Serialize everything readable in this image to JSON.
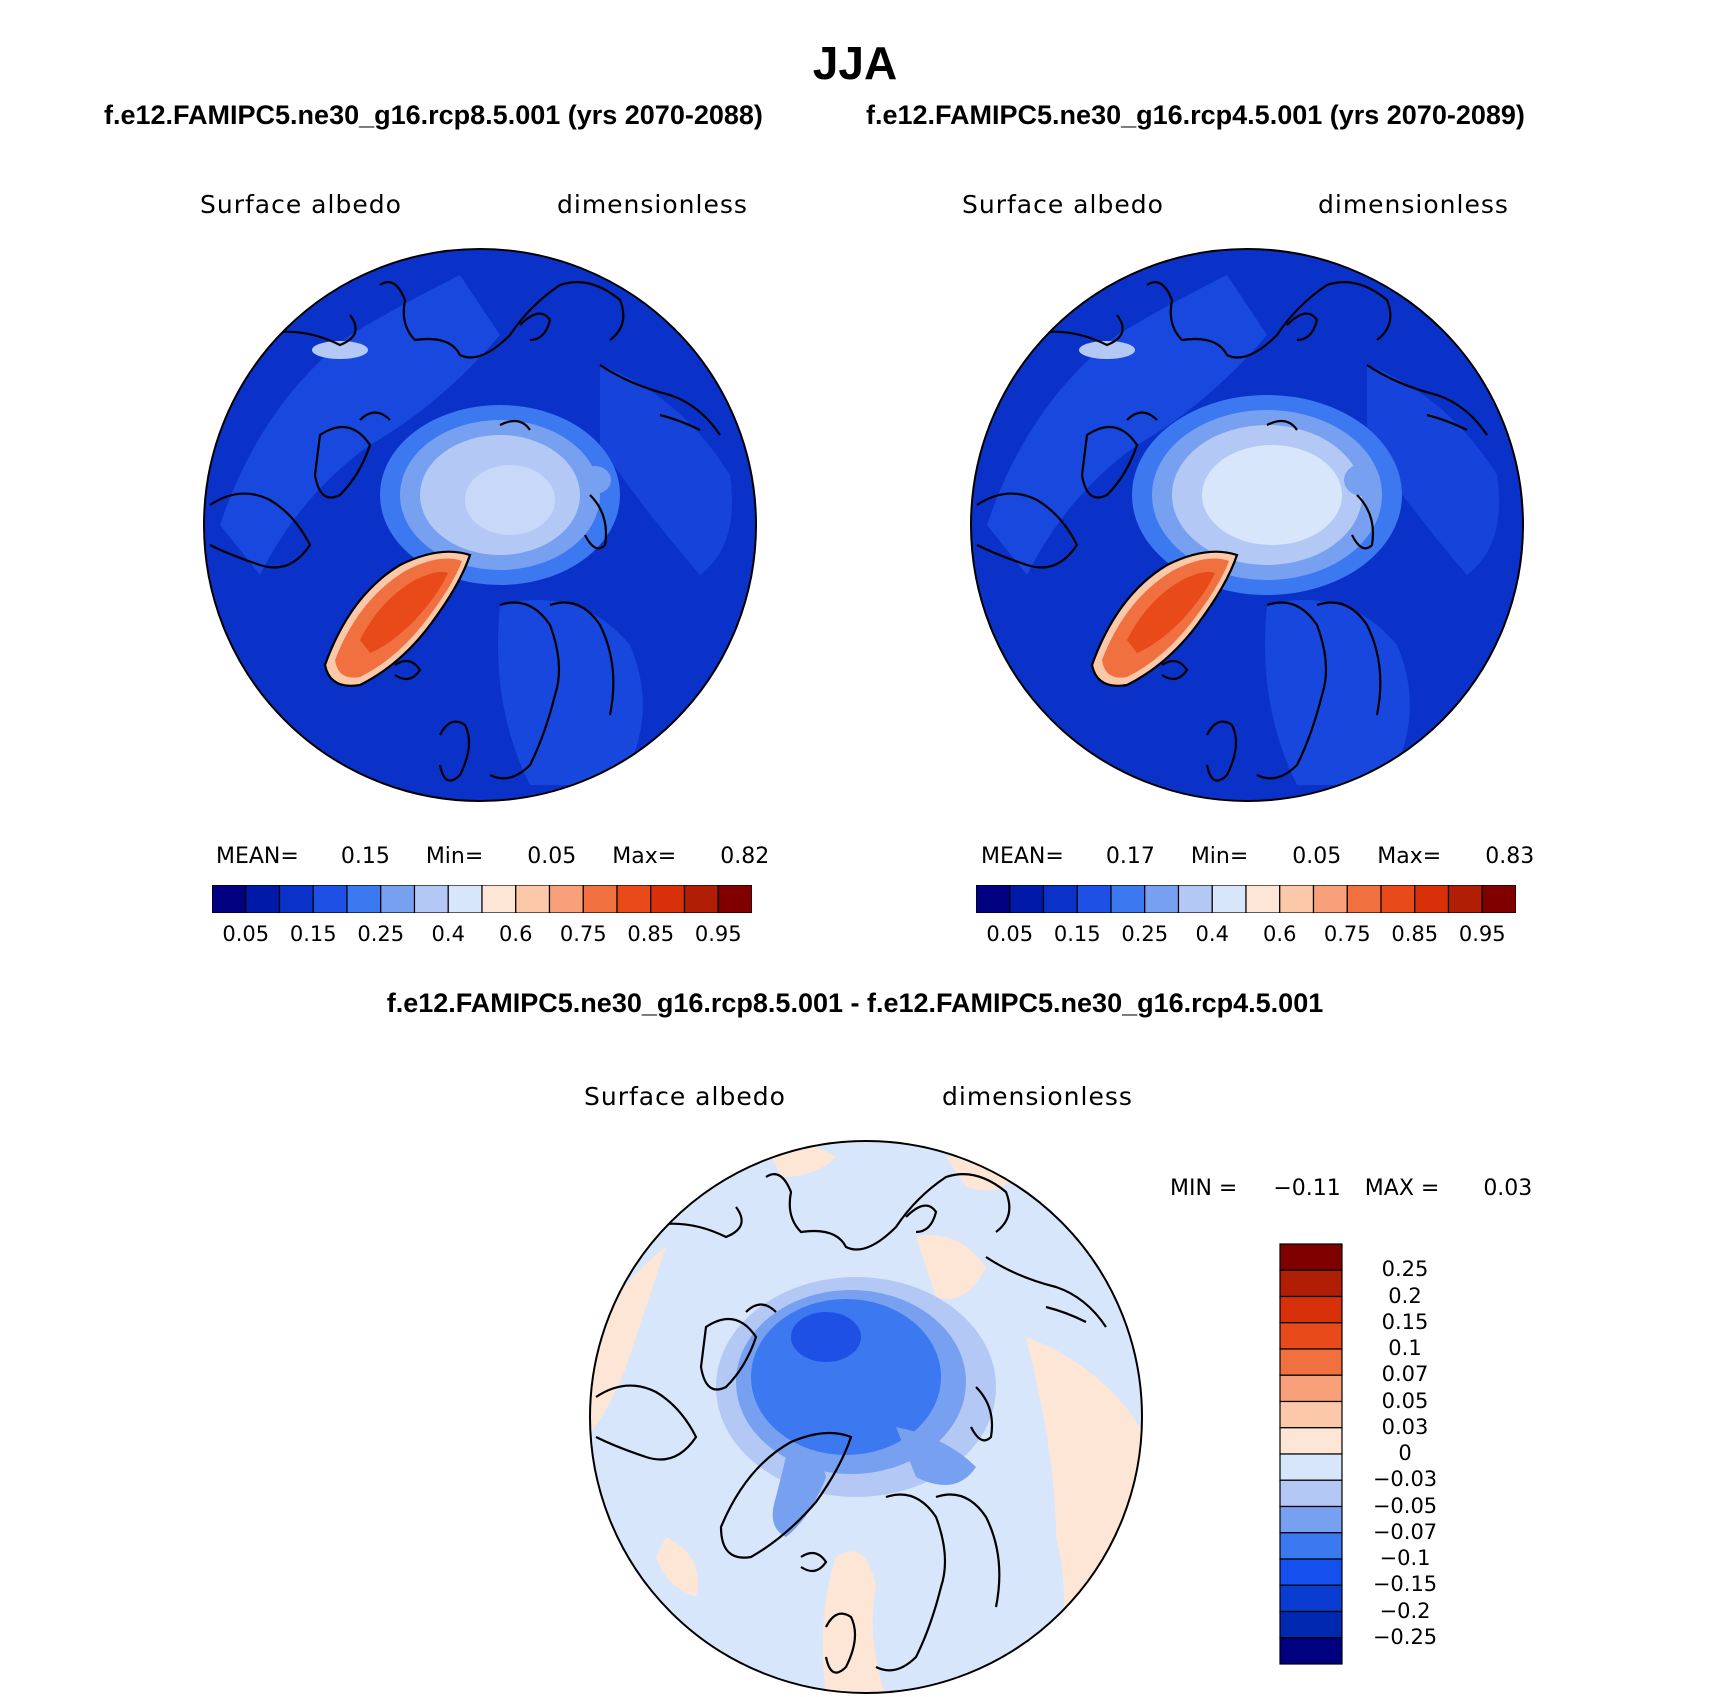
{
  "title": "JJA",
  "panels": [
    {
      "case": "f.e12.FAMIPC5.ne30_g16.rcp8.5.001 (yrs 2070-2088)",
      "variable": "Surface albedo",
      "units": "dimensionless",
      "stats": {
        "mean_label": "MEAN=",
        "mean": "0.15",
        "min_label": "Min=",
        "min": "0.05",
        "max_label": "Max=",
        "max": "0.82"
      }
    },
    {
      "case": "f.e12.FAMIPC5.ne30_g16.rcp4.5.001 (yrs 2070-2089)",
      "variable": "Surface albedo",
      "units": "dimensionless",
      "stats": {
        "mean_label": "MEAN=",
        "mean": "0.17",
        "min_label": "Min=",
        "min": "0.05",
        "max_label": "Max=",
        "max": "0.83"
      }
    }
  ],
  "diff": {
    "title": "f.e12.FAMIPC5.ne30_g16.rcp8.5.001 - f.e12.FAMIPC5.ne30_g16.rcp4.5.001",
    "variable": "Surface albedo",
    "units": "dimensionless",
    "stats": {
      "min_label": "MIN =",
      "min": "−0.11",
      "max_label": "MAX =",
      "max": "0.03"
    }
  },
  "colorbar_abs": {
    "colors": [
      "#000080",
      "#0019a8",
      "#0a32c8",
      "#1e50e6",
      "#3c78f0",
      "#78a0f0",
      "#b4c8f5",
      "#d7e6fa",
      "#fde6d6",
      "#fcc8aa",
      "#f8a07a",
      "#f07040",
      "#e84a1a",
      "#d83008",
      "#b01e05",
      "#800000"
    ],
    "labels": [
      "0.05",
      "0.15",
      "0.25",
      "0.4",
      "0.6",
      "0.75",
      "0.85",
      "0.95"
    ]
  },
  "colorbar_diff": {
    "colors": [
      "#000080",
      "#0028b0",
      "#0a3cd2",
      "#1450ee",
      "#3c78f0",
      "#78a0f0",
      "#b4c8f5",
      "#d7e6fa",
      "#fde6d6",
      "#fcc8aa",
      "#f8a07a",
      "#f07040",
      "#e84a1a",
      "#d83008",
      "#b01e05",
      "#800000"
    ],
    "labels": [
      "0.25",
      "0.2",
      "0.15",
      "0.1",
      "0.07",
      "0.05",
      "0.03",
      "0",
      "−0.03",
      "−0.05",
      "−0.07",
      "−0.1",
      "−0.15",
      "−0.2",
      "−0.25"
    ]
  },
  "map_colors": {
    "ocean_abs": "#0a32c8",
    "land_abs": "#1e50e6",
    "arctic_outer": "#78a0f0",
    "arctic_inner": "#b4c8f5",
    "arctic_core": "#d7e6fa",
    "greenland_edge": "#fcc8aa",
    "greenland_mid": "#f07040",
    "greenland_core": "#e84a1a",
    "diff_bg": "#d7e6fa",
    "diff_warm": "#fde6d6",
    "diff_neg1": "#b4c8f5",
    "diff_neg2": "#78a0f0",
    "diff_neg3": "#3c78f0",
    "diff_neg4": "#1e50e6"
  }
}
